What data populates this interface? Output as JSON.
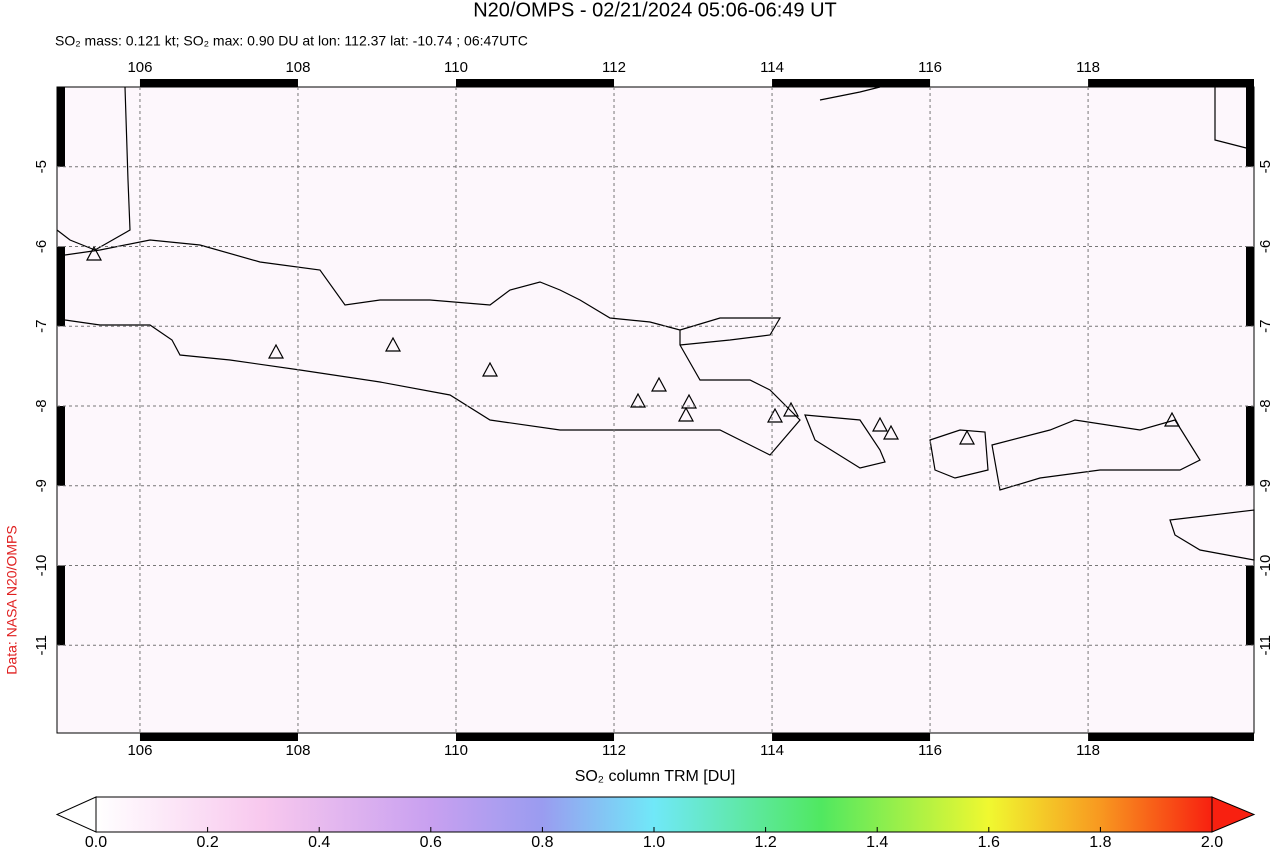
{
  "title": "N20/OMPS - 02/21/2024 05:06-06:49 UT",
  "subtitle": "SO₂ mass: 0.121 kt; SO₂ max: 0.90 DU at lon: 112.37 lat: -10.74 ; 06:47UTC",
  "credit": "Data: NASA N20/OMPS",
  "map": {
    "xlim": [
      104.95,
      120.1
    ],
    "ylim": [
      -12.1,
      -4.0
    ],
    "xticks": [
      106,
      108,
      110,
      112,
      114,
      116,
      118
    ],
    "yticks": [
      -5,
      -6,
      -7,
      -8,
      -9,
      -10,
      -11
    ],
    "grid": true
  },
  "colorbar": {
    "label": "SO₂ column TRM [DU]",
    "lim": [
      0,
      2
    ],
    "ticks": [
      {
        "value": 0,
        "label": "0.0"
      },
      {
        "value": 0.2,
        "label": "0.2"
      },
      {
        "value": 0.4,
        "label": "0.4"
      },
      {
        "value": 0.6,
        "label": "0.6"
      },
      {
        "value": 0.8,
        "label": "0.8"
      },
      {
        "value": 1,
        "label": "1.0"
      },
      {
        "value": 1.2,
        "label": "1.2"
      },
      {
        "value": 1.4,
        "label": "1.4"
      },
      {
        "value": 1.6,
        "label": "1.6"
      },
      {
        "value": 1.8,
        "label": "1.8"
      },
      {
        "value": 2,
        "label": "2.0"
      }
    ]
  }
}
